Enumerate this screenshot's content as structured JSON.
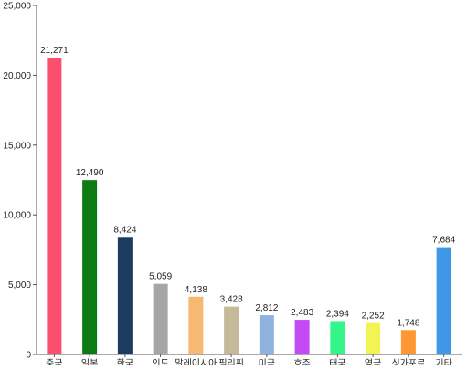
{
  "chart_data": {
    "type": "bar",
    "title": "",
    "xlabel": "",
    "ylabel": "",
    "ylim": [
      0,
      25000
    ],
    "yticks": [
      0,
      5000,
      10000,
      15000,
      20000,
      25000
    ],
    "ytick_labels": [
      "0",
      "5,000",
      "10,000",
      "15,000",
      "20,000",
      "25,000"
    ],
    "grid": false,
    "legend": "none",
    "categories": [
      "중국",
      "일본",
      "한국",
      "인도",
      "말레이시아",
      "필리핀",
      "미국",
      "호주",
      "태국",
      "영국",
      "싱가포르",
      "기타"
    ],
    "values": [
      21271,
      12490,
      8424,
      5059,
      4138,
      3428,
      2812,
      2483,
      2394,
      2252,
      1748,
      7684
    ],
    "value_labels": [
      "21,271",
      "12,490",
      "8,424",
      "5,059",
      "4,138",
      "3,428",
      "2,812",
      "2,483",
      "2,394",
      "2,252",
      "1,748",
      "7,684"
    ],
    "colors": [
      "#fc4e6e",
      "#0e7a14",
      "#1d3a5f",
      "#a6a6a6",
      "#f7b872",
      "#c4b998",
      "#8fb3de",
      "#c34af5",
      "#33f58a",
      "#f3f453",
      "#ff9833",
      "#3f97e6"
    ]
  }
}
